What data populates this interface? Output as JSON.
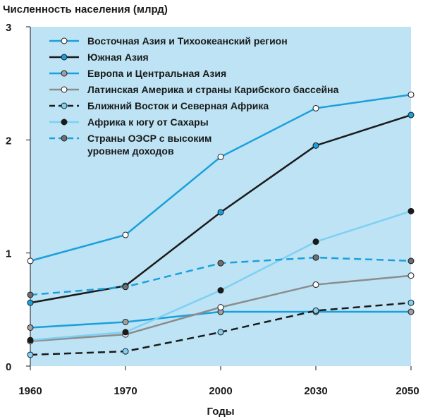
{
  "chart_data": {
    "type": "line",
    "title": "Численность населения (млрд)",
    "x_label": "Годы",
    "categories": [
      "1960",
      "1970",
      "2000",
      "2030",
      "2050"
    ],
    "ylim": [
      0,
      3
    ],
    "yticks": [
      0,
      1,
      2,
      3
    ],
    "legend": "upper left",
    "background": "#bde3f5",
    "series": [
      {
        "name": "Восточная Азия и Тихоокеанский регион",
        "color": "#1aa0dc",
        "marker_color": "#ffffff",
        "line_style": "solid",
        "values": [
          0.93,
          1.16,
          1.85,
          2.28,
          2.4
        ]
      },
      {
        "name": "Южная Азия",
        "color": "#1a1a1a",
        "marker_color": "#1aa0dc",
        "line_style": "solid",
        "values": [
          0.56,
          0.71,
          1.36,
          1.95,
          2.22
        ]
      },
      {
        "name": "Европа и Центральная Азия",
        "color": "#1aa0dc",
        "marker_color": "#a0a0a0",
        "line_style": "solid",
        "values": [
          0.34,
          0.39,
          0.48,
          0.48,
          0.48
        ]
      },
      {
        "name": "Латинская Америка и страны Карибского бассейна",
        "color": "#8c8c8c",
        "marker_color": "#ffffff",
        "line_style": "solid",
        "values": [
          0.22,
          0.28,
          0.52,
          0.72,
          0.8
        ]
      },
      {
        "name": "Ближний Восток и Северная Африка",
        "color": "#1a1a1a",
        "marker_color": "#7fd0f2",
        "line_style": "dashed",
        "values": [
          0.1,
          0.13,
          0.3,
          0.49,
          0.56
        ]
      },
      {
        "name": "Африка к югу от Сахары",
        "color": "#7fd0f2",
        "marker_color": "#1a1a1a",
        "line_style": "solid",
        "values": [
          0.23,
          0.3,
          0.67,
          1.1,
          1.37
        ]
      },
      {
        "name": "Страны ОЭСР с высоким уровнем доходов",
        "color": "#1aa0dc",
        "marker_color": "#707070",
        "line_style": "dashed",
        "values": [
          0.63,
          0.7,
          0.91,
          0.96,
          0.93
        ]
      }
    ]
  }
}
